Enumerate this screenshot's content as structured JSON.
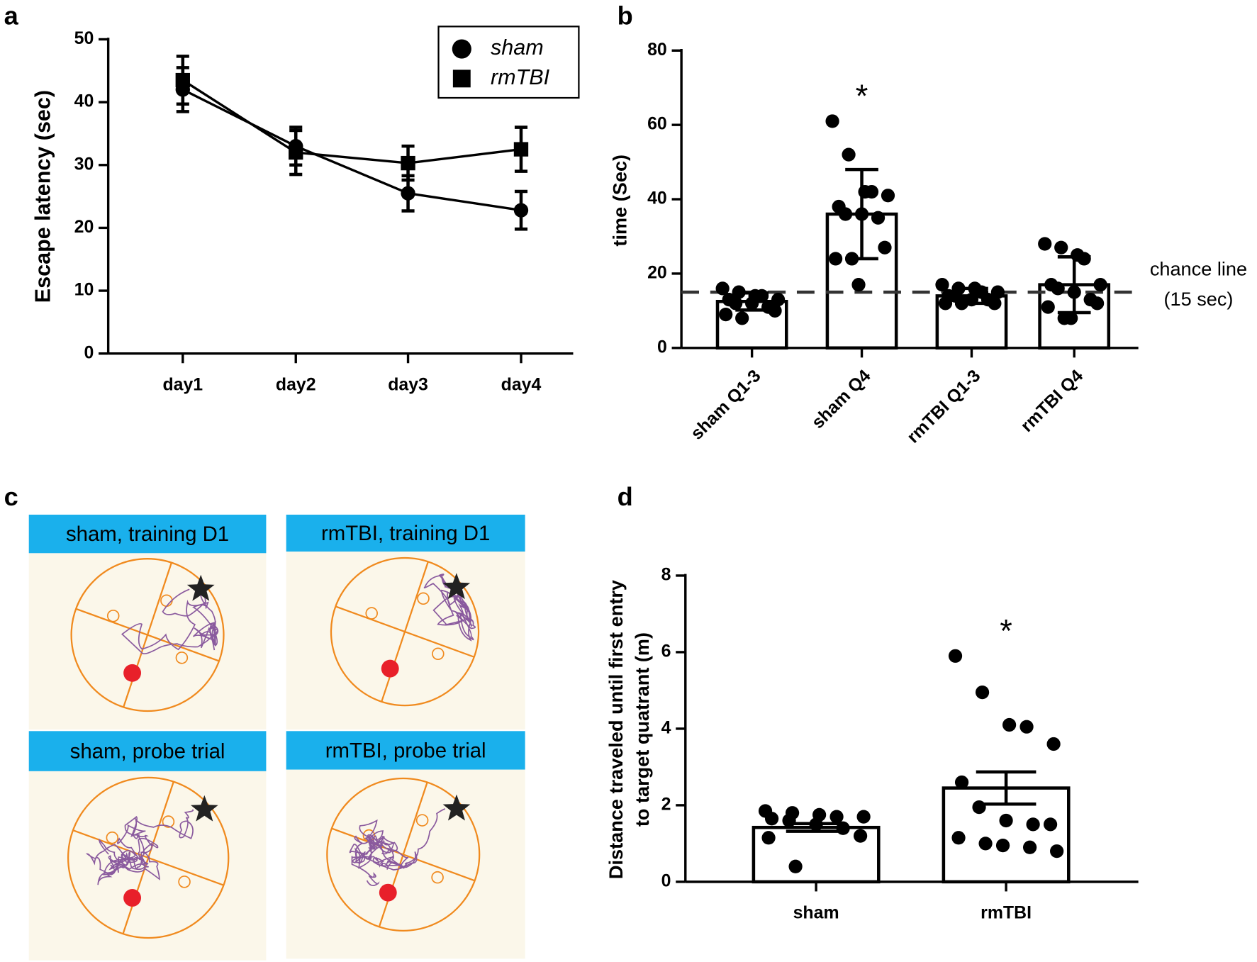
{
  "chart_data": [
    {
      "type": "line",
      "panel_label": "a",
      "ylabel": "Escape latency (sec)",
      "categories": [
        "day1",
        "day2",
        "day3",
        "day4"
      ],
      "series": [
        {
          "name": "sham",
          "marker": "circle",
          "color": "#000000",
          "values": [
            42,
            33,
            25.5,
            22.8
          ],
          "errors": [
            3.5,
            3,
            2.8,
            3
          ]
        },
        {
          "name": "rmTBI",
          "marker": "square",
          "color": "#000000",
          "values": [
            43.5,
            32,
            30.3,
            32.5
          ],
          "errors": [
            3.8,
            3.5,
            2.7,
            3.5
          ]
        }
      ],
      "ylim": [
        0,
        50
      ],
      "yticks": [
        0,
        10,
        20,
        30,
        40,
        50
      ],
      "legend": "upper right"
    },
    {
      "type": "bar",
      "panel_label": "b",
      "ylabel": "time (Sec)",
      "categories": [
        "sham Q1-3",
        "sham Q4",
        "rmTBI Q1-3",
        "rmTBI Q4"
      ],
      "values": [
        12.5,
        36,
        14,
        17
      ],
      "errors": [
        2.3,
        12,
        2,
        7.5
      ],
      "color": "#000000",
      "points": [
        [
          16,
          15,
          14,
          14,
          13,
          13,
          12,
          12,
          11,
          10,
          9,
          8
        ],
        [
          61,
          52,
          42,
          42,
          41,
          38,
          36,
          36,
          35,
          27,
          24,
          24,
          17
        ],
        [
          17,
          16,
          16,
          15,
          15,
          14,
          14,
          13,
          13,
          12,
          12,
          12
        ],
        [
          28,
          27,
          25,
          24,
          17,
          17,
          16,
          15,
          13,
          12,
          11,
          8,
          8
        ]
      ],
      "ylim": [
        0,
        80
      ],
      "yticks": [
        0,
        20,
        40,
        60,
        80
      ],
      "reference_line": {
        "value": 15,
        "label": "chance line",
        "sublabel": "(15 sec)"
      },
      "annotation": {
        "text": "*",
        "category": "sham Q4"
      }
    },
    {
      "type": "bar",
      "panel_label": "d",
      "ylabel": [
        "Distance traveled until first entry",
        "to target quatrant (m)"
      ],
      "categories": [
        "sham",
        "rmTBI"
      ],
      "values": [
        1.42,
        2.45
      ],
      "errors": [
        0.1,
        0.42
      ],
      "color": "#000000",
      "points": [
        [
          1.85,
          1.8,
          1.75,
          1.7,
          1.7,
          1.65,
          1.6,
          1.5,
          1.4,
          1.2,
          1.15,
          0.4
        ],
        [
          5.9,
          4.95,
          4.1,
          4.05,
          3.6,
          2.6,
          1.95,
          1.6,
          1.5,
          1.5,
          1.15,
          1.0,
          0.95,
          0.9,
          0.8
        ]
      ],
      "ylim": [
        0,
        8
      ],
      "yticks": [
        0,
        2,
        4,
        6,
        8
      ],
      "annotation": {
        "text": "*",
        "category": "rmTBI"
      }
    }
  ],
  "panel_c": {
    "label": "c",
    "tiles": [
      {
        "title": "sham, training D1"
      },
      {
        "title": "rmTBI, training D1"
      },
      {
        "title": "sham, probe trial"
      },
      {
        "title": "rmTBI, probe trial"
      }
    ]
  }
}
